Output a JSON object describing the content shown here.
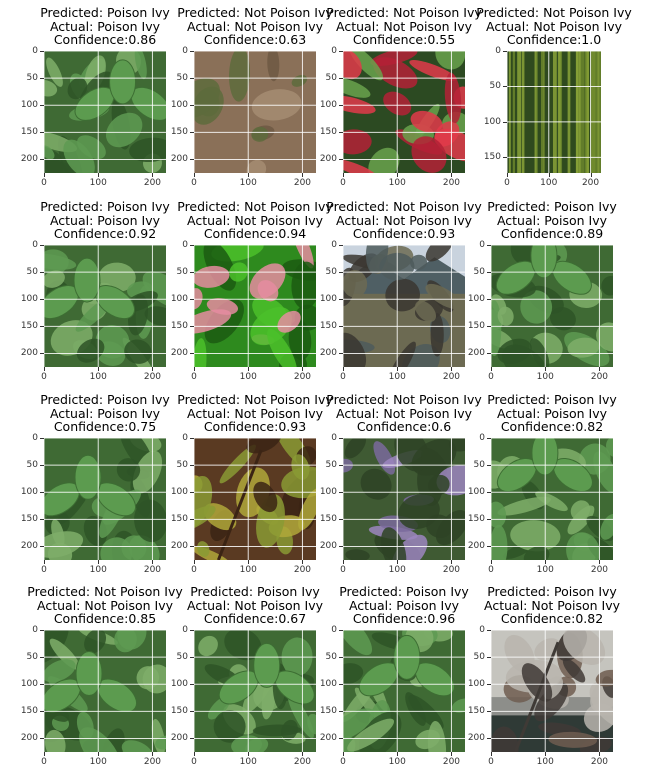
{
  "chart_data": [
    {
      "type": "image",
      "title_lines": [
        "Predicted: Poison Ivy",
        "Actual: Poison Ivy",
        "Confidence:0.86"
      ],
      "predicted": "Poison Ivy",
      "actual": "Poison Ivy",
      "confidence": 0.86,
      "scene": "ivy",
      "image_size": [
        225,
        225
      ],
      "xticks": [
        0,
        100,
        200
      ],
      "yticks": [
        0,
        50,
        100,
        150,
        200
      ]
    },
    {
      "type": "image",
      "title_lines": [
        "Predicted: Not Poison Ivy",
        "Actual: Not Poison Ivy",
        "Confidence:0.63"
      ],
      "predicted": "Not Poison Ivy",
      "actual": "Not Poison Ivy",
      "confidence": 0.63,
      "scene": "dry",
      "image_size": [
        225,
        225
      ],
      "xticks": [
        0,
        100,
        200
      ],
      "yticks": [
        0,
        50,
        100,
        150,
        200
      ]
    },
    {
      "type": "image",
      "title_lines": [
        "Predicted: Not Poison Ivy",
        "Actual: Not Poison Ivy",
        "Confidence:0.55"
      ],
      "predicted": "Not Poison Ivy",
      "actual": "Not Poison Ivy",
      "confidence": 0.55,
      "scene": "red",
      "image_size": [
        225,
        225
      ],
      "xticks": [
        0,
        100,
        200
      ],
      "yticks": [
        0,
        50,
        100,
        150,
        200
      ]
    },
    {
      "type": "image",
      "title_lines": [
        "Predicted: Not Poison Ivy",
        "Actual: Not Poison Ivy",
        "Confidence:1.0"
      ],
      "predicted": "Not Poison Ivy",
      "actual": "Not Poison Ivy",
      "confidence": 1.0,
      "scene": "tall",
      "image_size": [
        225,
        172
      ],
      "xticks": [
        0,
        100,
        200
      ],
      "yticks": [
        0,
        50,
        100,
        150
      ],
      "narrow": true
    },
    {
      "type": "image",
      "title_lines": [
        "Predicted: Poison Ivy",
        "Actual: Poison Ivy",
        "Confidence:0.92"
      ],
      "predicted": "Poison Ivy",
      "actual": "Poison Ivy",
      "confidence": 0.92,
      "scene": "ivy",
      "image_size": [
        225,
        225
      ],
      "xticks": [
        0,
        100,
        200
      ],
      "yticks": [
        0,
        50,
        100,
        150,
        200
      ]
    },
    {
      "type": "image",
      "title_lines": [
        "Predicted: Not Poison Ivy",
        "Actual: Not Poison Ivy",
        "Confidence:0.94"
      ],
      "predicted": "Not Poison Ivy",
      "actual": "Not Poison Ivy",
      "confidence": 0.94,
      "scene": "pink",
      "image_size": [
        225,
        225
      ],
      "xticks": [
        0,
        100,
        200
      ],
      "yticks": [
        0,
        50,
        100,
        150,
        200
      ]
    },
    {
      "type": "image",
      "title_lines": [
        "Predicted: Not Poison Ivy",
        "Actual: Not Poison Ivy",
        "Confidence:0.93"
      ],
      "predicted": "Not Poison Ivy",
      "actual": "Not Poison Ivy",
      "confidence": 0.93,
      "scene": "mountain",
      "image_size": [
        225,
        225
      ],
      "xticks": [
        0,
        100,
        200
      ],
      "yticks": [
        0,
        50,
        100,
        150,
        200
      ]
    },
    {
      "type": "image",
      "title_lines": [
        "Predicted: Poison Ivy",
        "Actual: Poison Ivy",
        "Confidence:0.89"
      ],
      "predicted": "Poison Ivy",
      "actual": "Poison Ivy",
      "confidence": 0.89,
      "scene": "ivy",
      "image_size": [
        225,
        225
      ],
      "xticks": [
        0,
        100,
        200
      ],
      "yticks": [
        0,
        50,
        100,
        150,
        200
      ]
    },
    {
      "type": "image",
      "title_lines": [
        "Predicted: Poison Ivy",
        "Actual: Poison Ivy",
        "Confidence:0.75"
      ],
      "predicted": "Poison Ivy",
      "actual": "Poison Ivy",
      "confidence": 0.75,
      "scene": "ivy",
      "image_size": [
        225,
        225
      ],
      "xticks": [
        0,
        100,
        200
      ],
      "yticks": [
        0,
        50,
        100,
        150,
        200
      ]
    },
    {
      "type": "image",
      "title_lines": [
        "Predicted: Not Poison Ivy",
        "Actual: Not Poison Ivy",
        "Confidence:0.93"
      ],
      "predicted": "Not Poison Ivy",
      "actual": "Not Poison Ivy",
      "confidence": 0.93,
      "scene": "branch",
      "image_size": [
        225,
        225
      ],
      "xticks": [
        0,
        100,
        200
      ],
      "yticks": [
        0,
        50,
        100,
        150,
        200
      ]
    },
    {
      "type": "image",
      "title_lines": [
        "Predicted: Not Poison Ivy",
        "Actual: Not Poison Ivy",
        "Confidence:0.6"
      ],
      "predicted": "Not Poison Ivy",
      "actual": "Not Poison Ivy",
      "confidence": 0.6,
      "scene": "purple",
      "image_size": [
        225,
        225
      ],
      "xticks": [
        0,
        100,
        200
      ],
      "yticks": [
        0,
        50,
        100,
        150,
        200
      ]
    },
    {
      "type": "image",
      "title_lines": [
        "Predicted: Poison Ivy",
        "Actual: Poison Ivy",
        "Confidence:0.82"
      ],
      "predicted": "Poison Ivy",
      "actual": "Poison Ivy",
      "confidence": 0.82,
      "scene": "ivy",
      "image_size": [
        225,
        225
      ],
      "xticks": [
        0,
        100,
        200
      ],
      "yticks": [
        0,
        50,
        100,
        150,
        200
      ]
    },
    {
      "type": "image",
      "title_lines": [
        "Predicted: Not Poison Ivy",
        "Actual: Not Poison Ivy",
        "Confidence:0.85"
      ],
      "predicted": "Not Poison Ivy",
      "actual": "Not Poison Ivy",
      "confidence": 0.85,
      "scene": "ivy",
      "image_size": [
        225,
        225
      ],
      "xticks": [
        0,
        100,
        200
      ],
      "yticks": [
        0,
        50,
        100,
        150,
        200
      ]
    },
    {
      "type": "image",
      "title_lines": [
        "Predicted: Poison Ivy",
        "Actual: Not Poison Ivy",
        "Confidence:0.67"
      ],
      "predicted": "Poison Ivy",
      "actual": "Not Poison Ivy",
      "confidence": 0.67,
      "scene": "ivy",
      "image_size": [
        225,
        225
      ],
      "xticks": [
        0,
        100,
        200
      ],
      "yticks": [
        0,
        50,
        100,
        150,
        200
      ]
    },
    {
      "type": "image",
      "title_lines": [
        "Predicted: Poison Ivy",
        "Actual: Poison Ivy",
        "Confidence:0.96"
      ],
      "predicted": "Poison Ivy",
      "actual": "Poison Ivy",
      "confidence": 0.96,
      "scene": "ivy",
      "image_size": [
        225,
        225
      ],
      "xticks": [
        0,
        100,
        200
      ],
      "yticks": [
        0,
        50,
        100,
        150,
        200
      ]
    },
    {
      "type": "image",
      "title_lines": [
        "Predicted: Poison Ivy",
        "Actual: Not Poison Ivy",
        "Confidence:0.82"
      ],
      "predicted": "Poison Ivy",
      "actual": "Not Poison Ivy",
      "confidence": 0.82,
      "scene": "winter",
      "image_size": [
        225,
        225
      ],
      "xticks": [
        0,
        100,
        200
      ],
      "yticks": [
        0,
        50,
        100,
        150,
        200
      ]
    }
  ],
  "palettes": {
    "ivy": {
      "bg": "#3f6a34",
      "a": "#5e9a52",
      "b": "#2e5427",
      "c": "#7fae6a",
      "ground": "#6b5a44"
    },
    "dry": {
      "bg": "#8a7058",
      "a": "#6d5843",
      "b": "#a48c72",
      "c": "#5d6b3c",
      "ground": "#7a6048"
    },
    "red": {
      "bg": "#2c4a22",
      "a": "#e23a4a",
      "b": "#b42136",
      "c": "#6aa24c",
      "ground": "#c9c2b7"
    },
    "tall": {
      "bg": "#2f4a1e",
      "a": "#6f8a2d",
      "b": "#1f3314",
      "c": "#8fa83a",
      "ground": "#3b3b22"
    },
    "pink": {
      "bg": "#2e8a1e",
      "a": "#4bbf2a",
      "b": "#1b5a12",
      "c": "#e58ca0",
      "ground": "#2e6b1c"
    },
    "mountain": {
      "bg": "#aab7c8",
      "a": "#4e5a5c",
      "b": "#6c6a52",
      "c": "#3a3630",
      "ground": "#5f5646"
    },
    "branch": {
      "bg": "#5a3a22",
      "a": "#b0a83a",
      "b": "#3b2414",
      "c": "#8a9a34",
      "ground": "#6b4a2e"
    },
    "purple": {
      "bg": "#3f5a33",
      "a": "#7a6a9c",
      "b": "#2e4326",
      "c": "#9c86c0",
      "ground": "#4c5a3a"
    },
    "winter": {
      "bg": "#8d8e8a",
      "a": "#6e5d50",
      "b": "#3f3a36",
      "c": "#b8b5ae",
      "ground": "#2f3a36"
    }
  }
}
